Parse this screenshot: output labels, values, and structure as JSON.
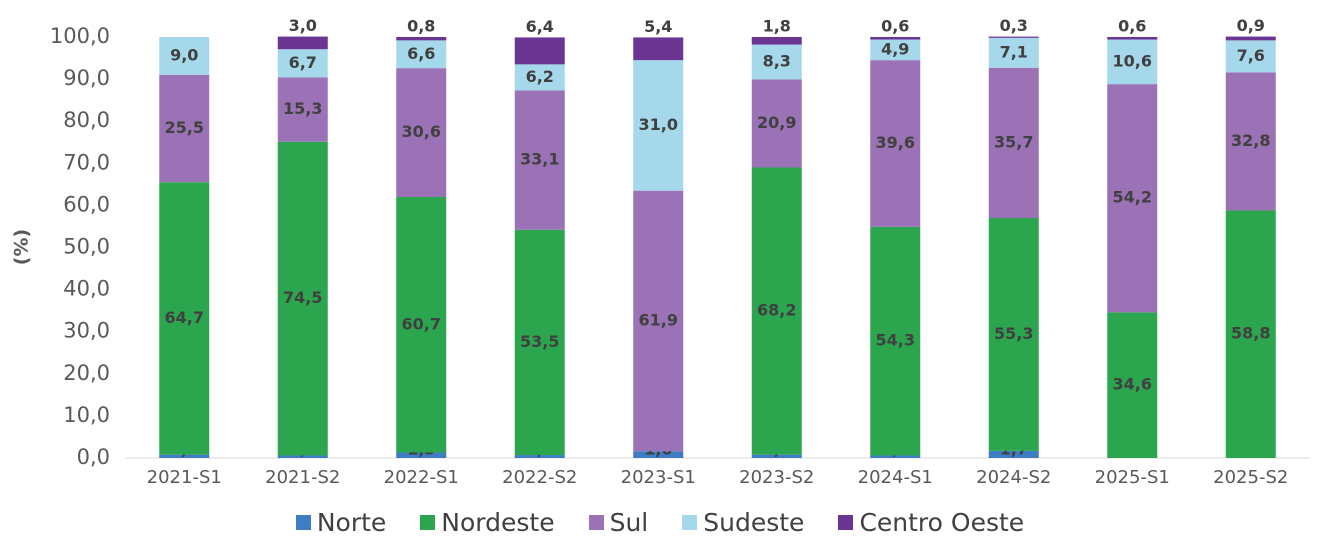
{
  "chart_data": {
    "type": "stacked_bar",
    "y_label": "(%)",
    "categories": [
      "2021-S1",
      "2021-S2",
      "2022-S1",
      "2022-S2",
      "2023-S1",
      "2023-S2",
      "2024-S1",
      "2024-S2",
      "2025-S1",
      "2025-S2"
    ],
    "series": [
      {
        "name": "Norte",
        "color": "#3e7cc4",
        "values": [
          0.8,
          0.6,
          1.3,
          0.7,
          1.6,
          0.8,
          0.6,
          1.7,
          0.0,
          0.0
        ],
        "value_labels": [
          "0,8",
          "0,6",
          "1,3",
          "0,7",
          "1,6",
          "0,8",
          "0,6",
          "1,7",
          "0,0",
          "0,0"
        ]
      },
      {
        "name": "Nordeste",
        "color": "#2ca64e",
        "values": [
          64.7,
          74.5,
          60.7,
          53.5,
          null,
          68.2,
          54.3,
          55.3,
          34.6,
          58.8
        ],
        "value_labels": [
          "64,7",
          "74,5",
          "60,7",
          "53,5",
          null,
          "68,2",
          "54,3",
          "55,3",
          "34,6",
          "58,8"
        ]
      },
      {
        "name": "Sul",
        "color": "#9b72b5",
        "values": [
          25.5,
          15.3,
          30.6,
          33.1,
          61.9,
          20.9,
          39.6,
          35.7,
          54.2,
          32.8
        ],
        "value_labels": [
          "25,5",
          "15,3",
          "30,6",
          "33,1",
          "61,9",
          "20,9",
          "39,6",
          "35,7",
          "54,2",
          "32,8"
        ]
      },
      {
        "name": "Sudeste",
        "color": "#a5d8ea",
        "values": [
          9.0,
          6.7,
          6.6,
          6.2,
          31.0,
          8.3,
          4.9,
          7.1,
          10.6,
          7.6
        ],
        "value_labels": [
          "9,0",
          "6,7",
          "6,6",
          "6,2",
          "31,0",
          "8,3",
          "4,9",
          "7,1",
          "10,6",
          "7,6"
        ]
      },
      {
        "name": "Centro Oeste",
        "color": "#6b3594",
        "values": [
          null,
          3.0,
          0.8,
          6.4,
          5.4,
          1.8,
          0.6,
          0.3,
          0.6,
          0.9
        ],
        "value_labels": [
          null,
          "3,0",
          "0,8",
          "6,4",
          "5,4",
          "1,8",
          "0,6",
          "0,3",
          "0,6",
          "0,9"
        ]
      }
    ],
    "ylim": [
      0,
      100
    ],
    "yticks": [
      {
        "value": 0,
        "label": "0,0"
      },
      {
        "value": 10,
        "label": "10,0"
      },
      {
        "value": 20,
        "label": "20,0"
      },
      {
        "value": 30,
        "label": "30,0"
      },
      {
        "value": 40,
        "label": "40,0"
      },
      {
        "value": 50,
        "label": "50,0"
      },
      {
        "value": 60,
        "label": "60,0"
      },
      {
        "value": 70,
        "label": "70,0"
      },
      {
        "value": 80,
        "label": "80,0"
      },
      {
        "value": 90,
        "label": "90,0"
      },
      {
        "value": 100,
        "label": "100,0"
      }
    ],
    "legend": "bottom"
  }
}
